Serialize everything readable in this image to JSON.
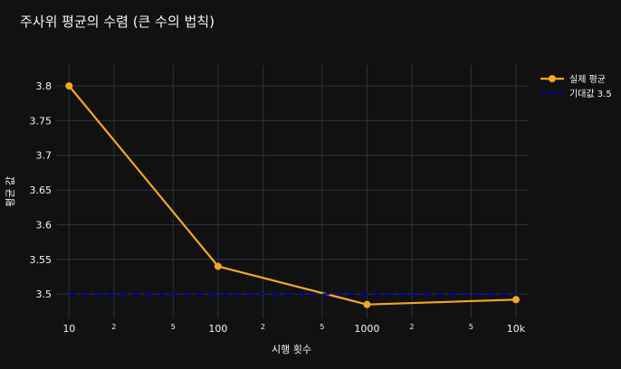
{
  "chart_data": {
    "type": "line",
    "title": "주사위 평균의 수렴 (큰 수의 법칙)",
    "xlabel": "시행 횟수",
    "ylabel": "평균 값",
    "x_scale": "log",
    "xlim": [
      8.3,
      12000
    ],
    "ylim": [
      3.465,
      3.83
    ],
    "x_ticks": [
      {
        "value": 10,
        "label": "10",
        "major": true
      },
      {
        "value": 20,
        "label": "2",
        "major": false
      },
      {
        "value": 50,
        "label": "5",
        "major": false
      },
      {
        "value": 100,
        "label": "100",
        "major": true
      },
      {
        "value": 200,
        "label": "2",
        "major": false
      },
      {
        "value": 500,
        "label": "5",
        "major": false
      },
      {
        "value": 1000,
        "label": "1000",
        "major": true
      },
      {
        "value": 2000,
        "label": "2",
        "major": false
      },
      {
        "value": 5000,
        "label": "5",
        "major": false
      },
      {
        "value": 10000,
        "label": "10k",
        "major": true
      }
    ],
    "y_ticks": [
      {
        "value": 3.5,
        "label": "3.5"
      },
      {
        "value": 3.55,
        "label": "3.55"
      },
      {
        "value": 3.6,
        "label": "3.6"
      },
      {
        "value": 3.65,
        "label": "3.65"
      },
      {
        "value": 3.7,
        "label": "3.7"
      },
      {
        "value": 3.75,
        "label": "3.75"
      },
      {
        "value": 3.8,
        "label": "3.8"
      }
    ],
    "grid": true,
    "legend_position": "top-right",
    "series": [
      {
        "name": "실제 평균",
        "mode": "lines+markers",
        "color": "#f5a623",
        "x": [
          10,
          100,
          1000,
          10000
        ],
        "y": [
          3.8,
          3.54,
          3.485,
          3.492
        ]
      },
      {
        "name": "기대값 3.5",
        "mode": "dashed-line",
        "color": "#0000c8",
        "x": [
          10,
          10000
        ],
        "y": [
          3.5,
          3.5
        ]
      }
    ]
  },
  "colors": {
    "background": "#111111",
    "grid": "#283442",
    "text": "#f2f5fa"
  }
}
